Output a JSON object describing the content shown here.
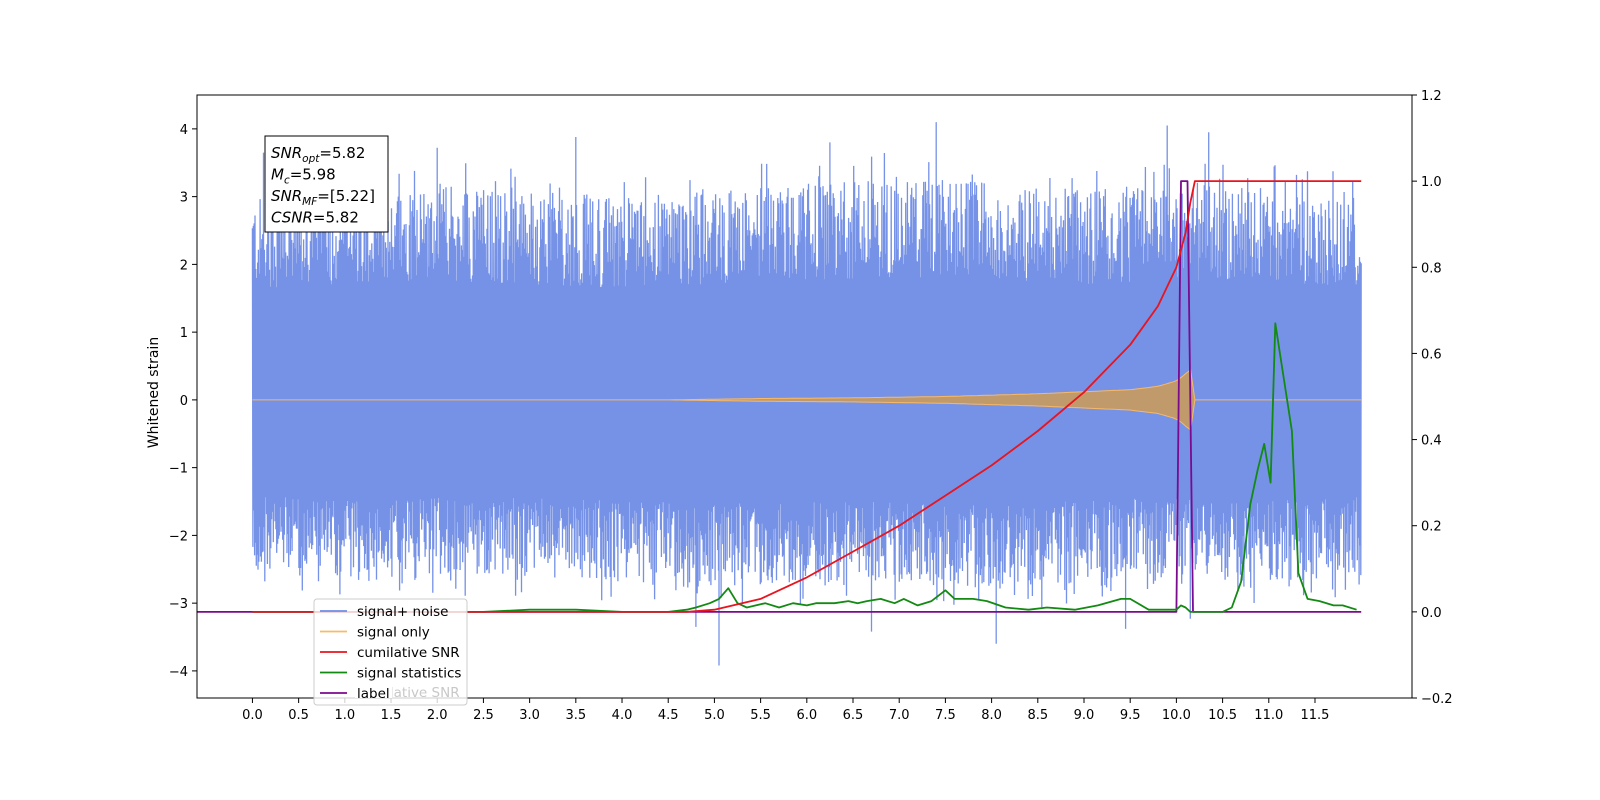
{
  "chart_data": {
    "type": "line",
    "title": "",
    "xlabel": "",
    "ylabel": "Whitened strain",
    "xlim": [
      -0.6,
      12.55
    ],
    "ylim": [
      -4.4,
      4.5
    ],
    "y2lim": [
      -0.2,
      1.2
    ],
    "xticks": [
      0.0,
      0.5,
      1.0,
      1.5,
      2.0,
      2.5,
      3.0,
      3.5,
      4.0,
      4.5,
      5.0,
      5.5,
      6.0,
      6.5,
      7.0,
      7.5,
      8.0,
      8.5,
      9.0,
      9.5,
      10.0,
      10.5,
      11.0,
      11.5
    ],
    "xtick_labels": [
      "0.0",
      "0.5",
      "1.0",
      "1.5",
      "2.0",
      "2.5",
      "3.0",
      "3.5",
      "4.0",
      "4.5",
      "5.0",
      "5.5",
      "6.0",
      "6.5",
      "7.0",
      "7.5",
      "8.0",
      "8.5",
      "9.0",
      "9.5",
      "10.0",
      "10.5",
      "11.0",
      "11.5"
    ],
    "yticks": [
      -4,
      -3,
      -2,
      -1,
      0,
      1,
      2,
      3,
      4
    ],
    "ytick_labels": [
      "−4",
      "−3",
      "−2",
      "−1",
      "0",
      "1",
      "2",
      "3",
      "4"
    ],
    "y2ticks": [
      -0.2,
      0.0,
      0.2,
      0.4,
      0.6,
      0.8,
      1.0,
      1.2
    ],
    "y2tick_labels": [
      "−0.2",
      "0.0",
      "0.2",
      "0.4",
      "0.6",
      "0.8",
      "1.0",
      "1.2"
    ],
    "grid": false,
    "legend_position": "lower-left",
    "series": [
      {
        "name": "signal+ noise",
        "color": "#6f8ce6",
        "axis": "left",
        "x_range": [
          0.0,
          12.0
        ],
        "envelope": {
          "x": [
            0,
            0.5,
            1,
            2,
            3,
            4,
            5,
            6,
            7,
            8,
            9,
            10,
            11,
            12
          ],
          "upper": [
            3.0,
            3.0,
            3.1,
            3.2,
            3.1,
            3.0,
            3.1,
            3.2,
            3.3,
            3.2,
            3.1,
            3.2,
            3.1,
            3.0
          ],
          "lower": [
            -2.6,
            -2.6,
            -2.7,
            -2.6,
            -2.6,
            -2.7,
            -2.8,
            -2.7,
            -2.7,
            -2.8,
            -2.7,
            -2.6,
            -2.7,
            -2.6
          ]
        },
        "peaks": [
          {
            "x": 0.12,
            "y": 3.65
          },
          {
            "x": 2.0,
            "y": 3.72
          },
          {
            "x": 3.5,
            "y": 3.88
          },
          {
            "x": 6.25,
            "y": 3.8
          },
          {
            "x": 7.4,
            "y": 4.1
          },
          {
            "x": 9.9,
            "y": 4.05
          },
          {
            "x": 10.35,
            "y": 3.95
          },
          {
            "x": 11.3,
            "y": 3.32
          },
          {
            "x": 5.05,
            "y": -3.92
          },
          {
            "x": 4.8,
            "y": -3.35
          },
          {
            "x": 6.7,
            "y": -3.42
          },
          {
            "x": 8.05,
            "y": -3.6
          },
          {
            "x": 9.45,
            "y": -3.38
          },
          {
            "x": 10.15,
            "y": -3.23
          }
        ]
      },
      {
        "name": "signal only",
        "color": "#f7b96a",
        "axis": "left",
        "x": [
          0.0,
          4.5,
          5.5,
          6.5,
          7.5,
          8.5,
          9.0,
          9.5,
          9.8,
          10.0,
          10.1,
          10.15,
          10.2,
          12.0
        ],
        "amplitude": [
          0.0,
          0.0,
          0.02,
          0.03,
          0.05,
          0.09,
          0.12,
          0.15,
          0.2,
          0.28,
          0.38,
          0.48,
          0.0,
          0.0
        ]
      },
      {
        "name": "cumilative SNR",
        "color": "#e8141e",
        "axis": "right",
        "x": [
          0.0,
          4.7,
          5.0,
          5.5,
          6.0,
          6.5,
          7.0,
          7.5,
          8.0,
          8.5,
          9.0,
          9.5,
          9.8,
          10.0,
          10.1,
          10.15,
          10.2,
          12.0
        ],
        "values": [
          0.0,
          0.0,
          0.005,
          0.03,
          0.08,
          0.14,
          0.2,
          0.27,
          0.34,
          0.42,
          0.51,
          0.62,
          0.71,
          0.8,
          0.88,
          0.95,
          1.0,
          1.0
        ]
      },
      {
        "name": "signal statistics",
        "color": "#138a13",
        "axis": "right",
        "x": [
          0.0,
          2.5,
          3.0,
          3.5,
          4.0,
          4.5,
          4.7,
          4.8,
          4.95,
          5.05,
          5.15,
          5.25,
          5.35,
          5.55,
          5.7,
          5.85,
          6.0,
          6.1,
          6.3,
          6.45,
          6.55,
          6.65,
          6.8,
          6.95,
          7.05,
          7.2,
          7.35,
          7.5,
          7.6,
          7.8,
          7.95,
          8.15,
          8.4,
          8.6,
          8.9,
          9.15,
          9.4,
          9.5,
          9.7,
          10.0,
          10.05,
          10.1,
          10.15,
          10.5,
          10.6,
          10.7,
          10.8,
          10.88,
          10.95,
          11.02,
          11.07,
          11.15,
          11.25,
          11.32,
          11.42,
          11.55,
          11.7,
          11.8,
          11.95
        ],
        "values": [
          0.0,
          0.0,
          0.005,
          0.005,
          0.0,
          0.0,
          0.005,
          0.01,
          0.02,
          0.03,
          0.055,
          0.02,
          0.01,
          0.02,
          0.01,
          0.02,
          0.015,
          0.02,
          0.02,
          0.025,
          0.02,
          0.025,
          0.03,
          0.02,
          0.03,
          0.015,
          0.025,
          0.05,
          0.03,
          0.03,
          0.025,
          0.01,
          0.005,
          0.01,
          0.005,
          0.015,
          0.03,
          0.03,
          0.005,
          0.005,
          0.015,
          0.01,
          0.0,
          0.0,
          0.01,
          0.07,
          0.25,
          0.33,
          0.39,
          0.3,
          0.67,
          0.56,
          0.42,
          0.09,
          0.03,
          0.025,
          0.015,
          0.015,
          0.005
        ]
      },
      {
        "name": "label",
        "color": "#7b0a8c",
        "axis": "right",
        "x": [
          -0.6,
          10.0,
          10.05,
          10.12,
          10.18,
          12.0
        ],
        "values": [
          0.0,
          0.0,
          1.0,
          1.0,
          0.0,
          0.0
        ]
      }
    ],
    "legend_ghost_text": "cumilative SNR",
    "annotation": {
      "lines": [
        {
          "sym": "SNR",
          "sub": "opt",
          "value": "=5.82"
        },
        {
          "sym": "M",
          "sub": "c",
          "value": "=5.98"
        },
        {
          "sym": "SNR",
          "sub": "MF",
          "value": "=[5.22]"
        },
        {
          "sym": "CSNR",
          "sub": "",
          "value": "=5.82"
        }
      ]
    }
  }
}
